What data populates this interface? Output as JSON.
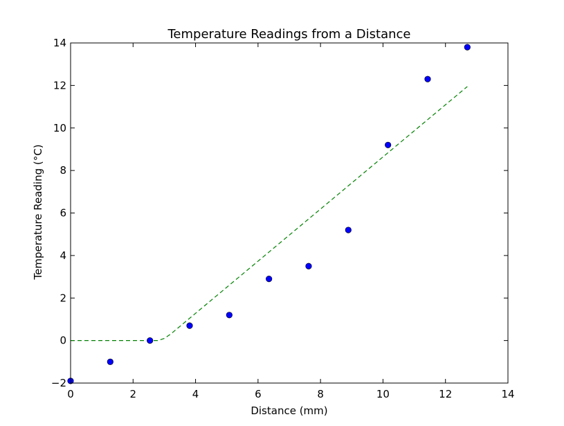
{
  "chart_data": {
    "type": "scatter",
    "title": "Temperature Readings from a Distance",
    "xlabel": "Distance (mm)",
    "ylabel": "Temperature Reading (°C)",
    "xlim": [
      0,
      14
    ],
    "ylim": [
      -2,
      14
    ],
    "xticks": [
      0,
      2,
      4,
      6,
      8,
      10,
      12,
      14
    ],
    "yticks": [
      -2,
      0,
      2,
      4,
      6,
      8,
      10,
      12,
      14
    ],
    "xtick_labels": [
      "0",
      "2",
      "4",
      "6",
      "8",
      "10",
      "12",
      "14"
    ],
    "ytick_labels": [
      "−2",
      "0",
      "2",
      "4",
      "6",
      "8",
      "10",
      "12",
      "14"
    ],
    "grid": false,
    "series": [
      {
        "kind": "scatter",
        "color": "#0000ff",
        "x": [
          0,
          1.27,
          2.54,
          3.81,
          5.08,
          6.35,
          7.62,
          8.89,
          10.16,
          11.43,
          12.7
        ],
        "y": [
          -1.9,
          -1.0,
          0.0,
          0.7,
          1.2,
          2.9,
          3.5,
          5.2,
          9.2,
          12.3,
          13.8
        ]
      },
      {
        "kind": "line",
        "style": "dashed",
        "color": "#008000",
        "x": [
          0,
          2.5,
          2.8,
          3.0,
          3.2,
          12.7
        ],
        "y": [
          0,
          0,
          0,
          0.1,
          0.3,
          11.95
        ]
      }
    ]
  }
}
